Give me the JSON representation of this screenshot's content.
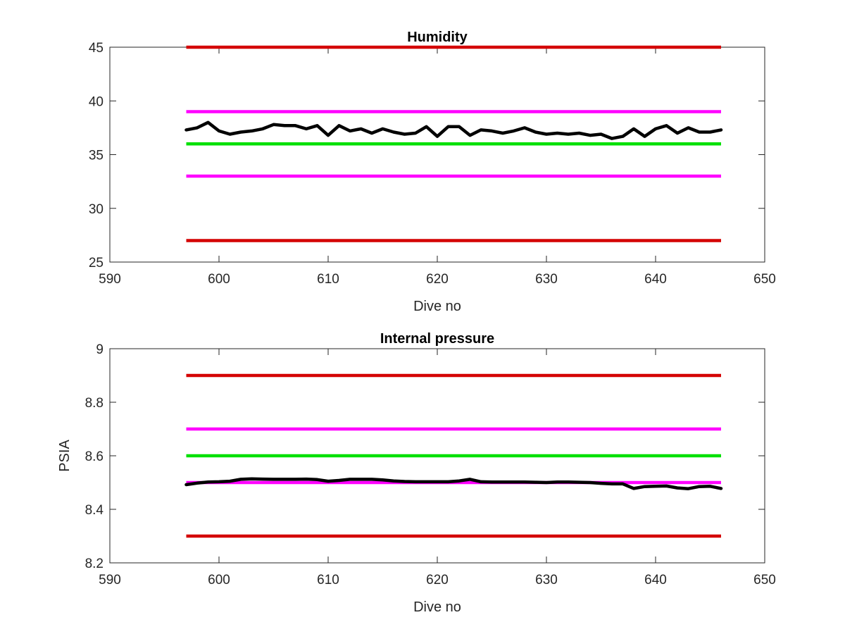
{
  "chart_data": [
    {
      "type": "line",
      "title": "Humidity",
      "xlabel": "Dive no",
      "ylabel": "",
      "xlim": [
        590,
        650
      ],
      "ylim": [
        25,
        45
      ],
      "xticks": [
        590,
        600,
        610,
        620,
        630,
        640,
        650
      ],
      "yticks": [
        25,
        30,
        35,
        40,
        45
      ],
      "grid": false,
      "reference_lines": [
        {
          "y": 45,
          "x_range": [
            597,
            646
          ],
          "color": "#d40000"
        },
        {
          "y": 39,
          "x_range": [
            597,
            646
          ],
          "color": "#ff00ff"
        },
        {
          "y": 36,
          "x_range": [
            597,
            646
          ],
          "color": "#00e000"
        },
        {
          "y": 33,
          "x_range": [
            597,
            646
          ],
          "color": "#ff00ff"
        },
        {
          "y": 27,
          "x_range": [
            597,
            646
          ],
          "color": "#d40000"
        }
      ],
      "series": [
        {
          "color": "#000000",
          "x": [
            597,
            598,
            599,
            600,
            601,
            602,
            603,
            604,
            605,
            606,
            607,
            608,
            609,
            610,
            611,
            612,
            613,
            614,
            615,
            616,
            617,
            618,
            619,
            620,
            621,
            622,
            623,
            624,
            625,
            626,
            627,
            628,
            629,
            630,
            631,
            632,
            633,
            634,
            635,
            636,
            637,
            638,
            639,
            640,
            641,
            642,
            643,
            644,
            645,
            646
          ],
          "values": [
            37.3,
            37.5,
            38.0,
            37.2,
            36.9,
            37.1,
            37.2,
            37.4,
            37.8,
            37.7,
            37.7,
            37.4,
            37.7,
            36.8,
            37.7,
            37.2,
            37.4,
            37.0,
            37.4,
            37.1,
            36.9,
            37.0,
            37.6,
            36.7,
            37.6,
            37.6,
            36.8,
            37.3,
            37.2,
            37.0,
            37.2,
            37.5,
            37.1,
            36.9,
            37.0,
            36.9,
            37.0,
            36.8,
            36.9,
            36.5,
            36.7,
            37.4,
            36.7,
            37.4,
            37.7,
            37.0,
            37.5,
            37.1,
            37.1,
            37.3
          ]
        }
      ]
    },
    {
      "type": "line",
      "title": "Internal pressure",
      "xlabel": "Dive no",
      "ylabel": "PSIA",
      "xlim": [
        590,
        650
      ],
      "ylim": [
        8.2,
        9.0
      ],
      "xticks": [
        590,
        600,
        610,
        620,
        630,
        640,
        650
      ],
      "yticks": [
        8.2,
        8.4,
        8.6,
        8.8,
        9.0
      ],
      "ytick_labels": [
        "8.2",
        "8.4",
        "8.6",
        "8.8",
        "9"
      ],
      "grid": false,
      "reference_lines": [
        {
          "y": 8.9,
          "x_range": [
            597,
            646
          ],
          "color": "#d40000"
        },
        {
          "y": 8.7,
          "x_range": [
            597,
            646
          ],
          "color": "#ff00ff"
        },
        {
          "y": 8.6,
          "x_range": [
            597,
            646
          ],
          "color": "#00e000"
        },
        {
          "y": 8.5,
          "x_range": [
            597,
            646
          ],
          "color": "#ff00ff"
        },
        {
          "y": 8.3,
          "x_range": [
            597,
            646
          ],
          "color": "#d40000"
        }
      ],
      "series": [
        {
          "color": "#000000",
          "x": [
            597,
            598,
            599,
            600,
            601,
            602,
            603,
            604,
            605,
            606,
            607,
            608,
            609,
            610,
            611,
            612,
            613,
            614,
            615,
            616,
            617,
            618,
            619,
            620,
            621,
            622,
            623,
            624,
            625,
            626,
            627,
            628,
            629,
            630,
            631,
            632,
            633,
            634,
            635,
            636,
            637,
            638,
            639,
            640,
            641,
            642,
            643,
            644,
            645,
            646
          ],
          "values": [
            8.492,
            8.498,
            8.502,
            8.503,
            8.505,
            8.512,
            8.514,
            8.513,
            8.512,
            8.512,
            8.512,
            8.513,
            8.511,
            8.505,
            8.508,
            8.512,
            8.512,
            8.512,
            8.51,
            8.506,
            8.504,
            8.503,
            8.503,
            8.503,
            8.503,
            8.506,
            8.512,
            8.503,
            8.502,
            8.502,
            8.502,
            8.502,
            8.501,
            8.5,
            8.502,
            8.502,
            8.501,
            8.5,
            8.497,
            8.495,
            8.495,
            8.478,
            8.485,
            8.486,
            8.487,
            8.48,
            8.477,
            8.485,
            8.486,
            8.478
          ]
        }
      ]
    }
  ]
}
